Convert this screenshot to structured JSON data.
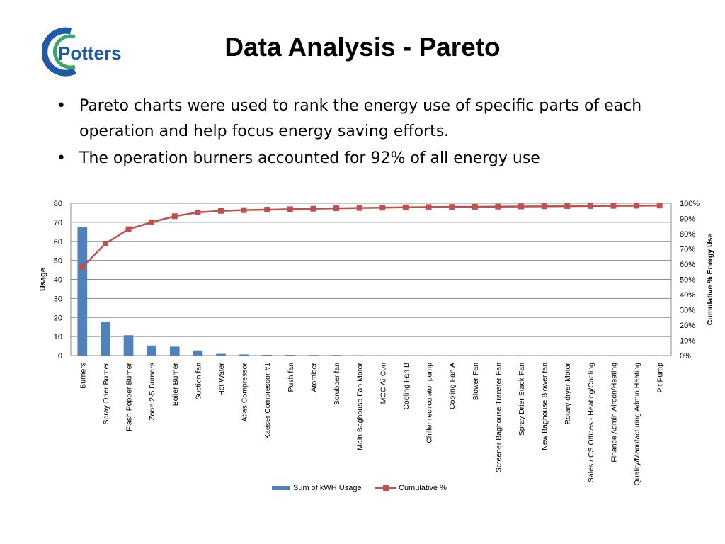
{
  "header": {
    "title": "Data Analysis - Pareto",
    "logo_text": "Potters"
  },
  "bullets": [
    "Pareto charts were used to rank the energy use of specific parts of each operation and help focus energy saving efforts.",
    "The operation burners accounted for 92% of all energy use"
  ],
  "colors": {
    "bar": "#4f81bd",
    "line": "#c0504d",
    "logo_blue": "#1e5aa8",
    "logo_green": "#37a66a"
  },
  "chart_data": {
    "type": "bar",
    "categories": [
      "Burners",
      "Spray Drier Burner",
      "Flash Popper Burner",
      "Zone 2-5 Burners",
      "Boiler Burner",
      "Suction fan",
      "Hot Water",
      "Atlas Compressor",
      "Kaeser Compressor #1",
      "Push fan",
      "Atomiser",
      "Scrubber  fan",
      "Main Baghouse Fan Motor",
      "MCC AirCon",
      "Cooling Fan B",
      "Chiller recirculator pump",
      "Cooling Fan A",
      "Blower Fan",
      "Screener Baghouse Transfer Fan",
      "Spray Drier Stack Fan",
      "New Baghouse Blower fan",
      "Rotary dryer Motor",
      "Sales / CS Offices - Heating/Cooling",
      "Finance Admin Aircon/Heating",
      "Quality/Manufacturing Admin Heating",
      "Pit Pump"
    ],
    "series": [
      {
        "name": "Sum of kWH Usage",
        "type": "bar",
        "axis": "left",
        "values": [
          67.5,
          17.8,
          10.7,
          5.3,
          4.7,
          2.7,
          0.9,
          0.6,
          0.4,
          0.35,
          0.3,
          0.3,
          0.2,
          0.15,
          0.1,
          0.1,
          0.08,
          0.07,
          0.06,
          0.05,
          0.05,
          0.04,
          0.03,
          0.03,
          0.02,
          0.02
        ]
      },
      {
        "name": "Cumulative %",
        "type": "line",
        "axis": "right",
        "values": [
          58,
          73.5,
          83,
          87.5,
          91.5,
          94,
          95,
          95.5,
          95.8,
          96.1,
          96.4,
          96.7,
          96.9,
          97.1,
          97.3,
          97.5,
          97.6,
          97.7,
          97.8,
          97.9,
          98,
          98.1,
          98.2,
          98.3,
          98.4,
          98.5
        ]
      }
    ],
    "ylabel": "Usage",
    "y2label": "Cumulative % Energy Use",
    "ylim": [
      0,
      80
    ],
    "yticks": [
      0,
      10,
      20,
      30,
      40,
      50,
      60,
      70,
      80
    ],
    "y2lim": [
      0,
      100
    ],
    "y2ticks": [
      "0%",
      "10%",
      "20%",
      "30%",
      "40%",
      "50%",
      "60%",
      "70%",
      "80%",
      "90%",
      "100%"
    ],
    "grid": true,
    "legend": "bottom"
  }
}
